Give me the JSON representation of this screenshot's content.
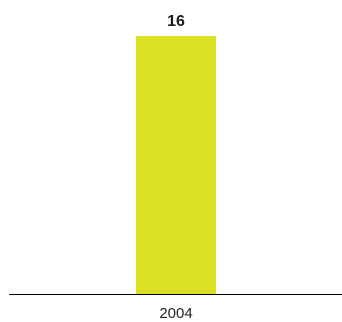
{
  "chart_data": {
    "type": "bar",
    "categories": [
      "2004"
    ],
    "series": [
      {
        "values": [
          16
        ],
        "color": "#dbe024"
      }
    ],
    "data_labels": [
      "16"
    ],
    "ylim": [
      0,
      16
    ],
    "grid": false,
    "legend": "none"
  }
}
